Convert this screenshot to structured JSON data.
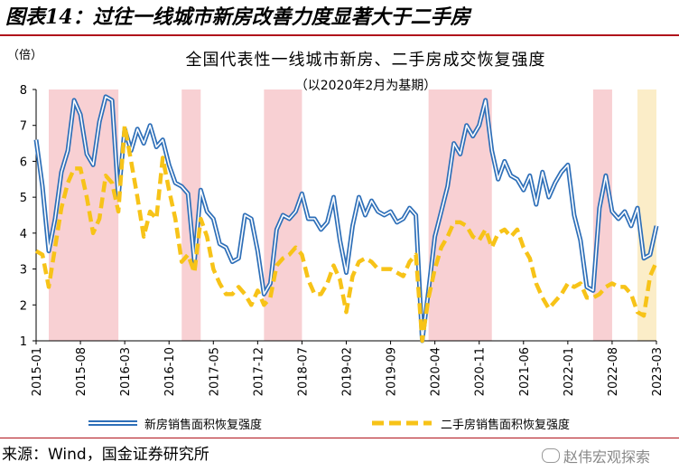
{
  "header": {
    "figure_title": "图表14：过往一线城市新房改善力度显著大于二手房"
  },
  "chart_data": {
    "type": "line",
    "title": "全国代表性一线城市新房、二手房成交恢复强度",
    "subtitle": "（以2020年2月为基期）",
    "ylabel": "（倍）",
    "ylim": [
      1,
      8
    ],
    "yticks": [
      "1",
      "2",
      "3",
      "4",
      "5",
      "6",
      "7",
      "8"
    ],
    "x_tick_labels": [
      "2015-01",
      "2015-08",
      "2016-03",
      "2016-10",
      "2017-05",
      "2017-12",
      "2018-07",
      "2019-02",
      "2019-09",
      "2020-04",
      "2020-11",
      "2021-06",
      "2022-01",
      "2022-08",
      "2023-03"
    ],
    "x_range": [
      "2015-01",
      "2023-03"
    ],
    "shaded_periods": [
      {
        "start": "2015-03",
        "end": "2016-02",
        "color": "#f8d0d3"
      },
      {
        "start": "2016-12",
        "end": "2017-03",
        "color": "#f8d0d3"
      },
      {
        "start": "2018-01",
        "end": "2018-07",
        "color": "#f8d0d3"
      },
      {
        "start": "2020-03",
        "end": "2021-01",
        "color": "#f8d0d3"
      },
      {
        "start": "2022-05",
        "end": "2022-08",
        "color": "#f8d0d3"
      },
      {
        "start": "2022-12",
        "end": "2023-03",
        "color": "#fbedc8"
      }
    ],
    "series": [
      {
        "name": "新房销售面积恢复强度",
        "color": "#2e6fb8",
        "style": "double-line",
        "points": [
          [
            "2015-01",
            6.6
          ],
          [
            "2015-02",
            5.3
          ],
          [
            "2015-03",
            3.5
          ],
          [
            "2015-04",
            4.4
          ],
          [
            "2015-05",
            5.7
          ],
          [
            "2015-06",
            6.3
          ],
          [
            "2015-07",
            7.7
          ],
          [
            "2015-08",
            7.3
          ],
          [
            "2015-09",
            6.2
          ],
          [
            "2015-10",
            5.9
          ],
          [
            "2015-11",
            7.1
          ],
          [
            "2015-12",
            7.8
          ],
          [
            "2016-01",
            7.7
          ],
          [
            "2016-02",
            5.0
          ],
          [
            "2016-03",
            6.9
          ],
          [
            "2016-04",
            6.3
          ],
          [
            "2016-05",
            6.9
          ],
          [
            "2016-06",
            6.5
          ],
          [
            "2016-07",
            7.0
          ],
          [
            "2016-08",
            6.4
          ],
          [
            "2016-09",
            6.6
          ],
          [
            "2016-10",
            5.9
          ],
          [
            "2016-11",
            5.4
          ],
          [
            "2016-12",
            5.3
          ],
          [
            "2017-01",
            5.1
          ],
          [
            "2017-02",
            3.2
          ],
          [
            "2017-03",
            5.2
          ],
          [
            "2017-04",
            4.6
          ],
          [
            "2017-05",
            4.4
          ],
          [
            "2017-06",
            3.7
          ],
          [
            "2017-07",
            3.6
          ],
          [
            "2017-08",
            3.2
          ],
          [
            "2017-09",
            3.3
          ],
          [
            "2017-10",
            4.5
          ],
          [
            "2017-11",
            4.4
          ],
          [
            "2017-12",
            3.5
          ],
          [
            "2018-01",
            2.3
          ],
          [
            "2018-02",
            2.6
          ],
          [
            "2018-03",
            4.1
          ],
          [
            "2018-04",
            4.5
          ],
          [
            "2018-05",
            4.4
          ],
          [
            "2018-06",
            4.6
          ],
          [
            "2018-07",
            5.1
          ],
          [
            "2018-08",
            4.4
          ],
          [
            "2018-09",
            4.4
          ],
          [
            "2018-10",
            4.1
          ],
          [
            "2018-11",
            4.3
          ],
          [
            "2018-12",
            5.0
          ],
          [
            "2019-01",
            3.8
          ],
          [
            "2019-02",
            2.9
          ],
          [
            "2019-03",
            4.2
          ],
          [
            "2019-04",
            5.0
          ],
          [
            "2019-05",
            4.5
          ],
          [
            "2019-06",
            4.9
          ],
          [
            "2019-07",
            4.6
          ],
          [
            "2019-08",
            4.5
          ],
          [
            "2019-09",
            4.6
          ],
          [
            "2019-10",
            4.3
          ],
          [
            "2019-11",
            4.4
          ],
          [
            "2019-12",
            4.7
          ],
          [
            "2020-01",
            4.5
          ],
          [
            "2020-02",
            1.0
          ],
          [
            "2020-03",
            2.4
          ],
          [
            "2020-04",
            3.9
          ],
          [
            "2020-05",
            4.6
          ],
          [
            "2020-06",
            5.3
          ],
          [
            "2020-07",
            6.5
          ],
          [
            "2020-08",
            6.2
          ],
          [
            "2020-09",
            7.0
          ],
          [
            "2020-10",
            6.7
          ],
          [
            "2020-11",
            7.0
          ],
          [
            "2020-12",
            7.7
          ],
          [
            "2021-01",
            6.3
          ],
          [
            "2021-02",
            5.5
          ],
          [
            "2021-03",
            6.0
          ],
          [
            "2021-04",
            5.6
          ],
          [
            "2021-05",
            5.5
          ],
          [
            "2021-06",
            5.2
          ],
          [
            "2021-07",
            5.6
          ],
          [
            "2021-08",
            4.8
          ],
          [
            "2021-09",
            5.7
          ],
          [
            "2021-10",
            5.0
          ],
          [
            "2021-11",
            5.4
          ],
          [
            "2021-12",
            5.7
          ],
          [
            "2022-01",
            5.9
          ],
          [
            "2022-02",
            4.5
          ],
          [
            "2022-03",
            3.8
          ],
          [
            "2022-04",
            2.5
          ],
          [
            "2022-05",
            2.4
          ],
          [
            "2022-06",
            4.7
          ],
          [
            "2022-07",
            5.6
          ],
          [
            "2022-08",
            4.6
          ],
          [
            "2022-09",
            4.4
          ],
          [
            "2022-10",
            4.6
          ],
          [
            "2022-11",
            4.2
          ],
          [
            "2022-12",
            4.7
          ],
          [
            "2023-01",
            3.3
          ],
          [
            "2023-02",
            3.4
          ],
          [
            "2023-03",
            4.2
          ]
        ]
      },
      {
        "name": "二手房销售面积恢复强度",
        "color": "#f7c318",
        "style": "dashed",
        "points": [
          [
            "2015-01",
            3.5
          ],
          [
            "2015-02",
            3.4
          ],
          [
            "2015-03",
            2.5
          ],
          [
            "2015-04",
            3.6
          ],
          [
            "2015-05",
            4.7
          ],
          [
            "2015-06",
            5.4
          ],
          [
            "2015-07",
            5.8
          ],
          [
            "2015-08",
            5.8
          ],
          [
            "2015-09",
            5.0
          ],
          [
            "2015-10",
            4.0
          ],
          [
            "2015-11",
            4.4
          ],
          [
            "2015-12",
            5.6
          ],
          [
            "2016-01",
            5.4
          ],
          [
            "2016-02",
            4.6
          ],
          [
            "2016-03",
            7.0
          ],
          [
            "2016-04",
            6.0
          ],
          [
            "2016-05",
            5.0
          ],
          [
            "2016-06",
            3.9
          ],
          [
            "2016-07",
            4.6
          ],
          [
            "2016-08",
            4.4
          ],
          [
            "2016-09",
            6.1
          ],
          [
            "2016-10",
            5.2
          ],
          [
            "2016-11",
            4.4
          ],
          [
            "2016-12",
            3.2
          ],
          [
            "2017-01",
            3.4
          ],
          [
            "2017-02",
            2.9
          ],
          [
            "2017-03",
            4.4
          ],
          [
            "2017-04",
            3.9
          ],
          [
            "2017-05",
            3.0
          ],
          [
            "2017-06",
            2.6
          ],
          [
            "2017-07",
            2.3
          ],
          [
            "2017-08",
            2.3
          ],
          [
            "2017-09",
            2.5
          ],
          [
            "2017-10",
            2.3
          ],
          [
            "2017-11",
            2.0
          ],
          [
            "2017-12",
            2.4
          ],
          [
            "2018-01",
            2.0
          ],
          [
            "2018-02",
            2.2
          ],
          [
            "2018-03",
            3.1
          ],
          [
            "2018-04",
            3.3
          ],
          [
            "2018-05",
            3.4
          ],
          [
            "2018-06",
            3.6
          ],
          [
            "2018-07",
            3.4
          ],
          [
            "2018-08",
            2.7
          ],
          [
            "2018-09",
            2.3
          ],
          [
            "2018-10",
            2.3
          ],
          [
            "2018-11",
            2.6
          ],
          [
            "2018-12",
            3.1
          ],
          [
            "2019-01",
            2.7
          ],
          [
            "2019-02",
            1.8
          ],
          [
            "2019-03",
            2.8
          ],
          [
            "2019-04",
            3.2
          ],
          [
            "2019-05",
            3.3
          ],
          [
            "2019-06",
            3.2
          ],
          [
            "2019-07",
            3.0
          ],
          [
            "2019-08",
            3.0
          ],
          [
            "2019-09",
            3.0
          ],
          [
            "2019-10",
            2.9
          ],
          [
            "2019-11",
            2.8
          ],
          [
            "2019-12",
            3.2
          ],
          [
            "2020-01",
            3.4
          ],
          [
            "2020-02",
            1.0
          ],
          [
            "2020-03",
            2.2
          ],
          [
            "2020-04",
            3.0
          ],
          [
            "2020-05",
            3.6
          ],
          [
            "2020-06",
            3.9
          ],
          [
            "2020-07",
            4.3
          ],
          [
            "2020-08",
            4.3
          ],
          [
            "2020-09",
            4.2
          ],
          [
            "2020-10",
            3.9
          ],
          [
            "2020-11",
            3.8
          ],
          [
            "2020-12",
            4.1
          ],
          [
            "2021-01",
            3.6
          ],
          [
            "2021-02",
            4.0
          ],
          [
            "2021-03",
            4.1
          ],
          [
            "2021-04",
            3.9
          ],
          [
            "2021-05",
            4.1
          ],
          [
            "2021-06",
            3.6
          ],
          [
            "2021-07",
            3.3
          ],
          [
            "2021-08",
            2.6
          ],
          [
            "2021-09",
            2.2
          ],
          [
            "2021-10",
            1.9
          ],
          [
            "2021-11",
            2.1
          ],
          [
            "2021-12",
            2.3
          ],
          [
            "2022-01",
            2.6
          ],
          [
            "2022-02",
            2.5
          ],
          [
            "2022-03",
            2.6
          ],
          [
            "2022-04",
            2.2
          ],
          [
            "2022-05",
            2.2
          ],
          [
            "2022-06",
            2.3
          ],
          [
            "2022-07",
            2.5
          ],
          [
            "2022-08",
            2.6
          ],
          [
            "2022-09",
            2.5
          ],
          [
            "2022-10",
            2.5
          ],
          [
            "2022-11",
            2.3
          ],
          [
            "2022-12",
            1.8
          ],
          [
            "2023-01",
            1.7
          ],
          [
            "2023-02",
            2.8
          ],
          [
            "2023-03",
            3.2
          ]
        ]
      }
    ],
    "legend_position": "bottom"
  },
  "footer": {
    "source": "来源：Wind，国金证券研究所",
    "watermark": "赵伟宏观探索"
  }
}
